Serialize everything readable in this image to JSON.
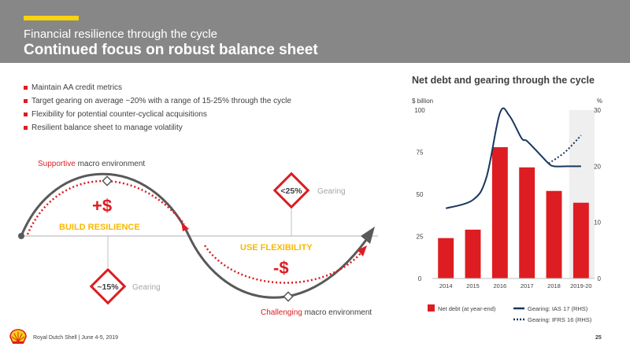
{
  "header": {
    "subtitle": "Financial resilience through the cycle",
    "title": "Continued focus on robust balance sheet",
    "accent_color": "#f8d30f"
  },
  "bullets": [
    "Maintain AA credit metrics",
    "Target gearing on average ~20% with a range of 15-25% through the cycle",
    "Flexibility for potential counter-cyclical acquisitions",
    "Resilient balance sheet to manage volatility"
  ],
  "cycle": {
    "supportive_word": "Supportive",
    "supportive_rest": " macro environment",
    "challenging_word": "Challenging",
    "challenging_rest": " macro environment",
    "build_sign": "+$",
    "build_label": "BUILD RESILIENCE",
    "flex_label": "USE FLEXIBILITY",
    "flex_sign": "-$",
    "upper_marker": "<25%",
    "lower_marker": "~15%",
    "gearing_label_upper": "Gearing",
    "gearing_label_lower": "Gearing",
    "highlight_color": "#dd1d21",
    "accent_color": "#f8d30f"
  },
  "chart_title": "Net debt and gearing through the cycle",
  "chart_data": {
    "type": "bar",
    "categories": [
      "2014",
      "2015",
      "2016",
      "2017",
      "2018",
      "2019-20"
    ],
    "ylabel_left": "$ billion",
    "ylabel_right": "%",
    "ylim_left": [
      0,
      100
    ],
    "ylim_right": [
      0,
      30
    ],
    "yticks_left": [
      0,
      25,
      50,
      75,
      100
    ],
    "yticks_right": [
      0,
      10,
      20,
      30
    ],
    "bars": {
      "name": "Net debt (at year-end)",
      "values": [
        24,
        29,
        78,
        66,
        52,
        45
      ],
      "color": "#dd1d21"
    },
    "lines": [
      {
        "name": "Gearing: IAS 17 (RHS)",
        "style": "solid",
        "color": "#17375e",
        "points": [
          [
            0,
            12.5
          ],
          [
            1,
            14
          ],
          [
            1.5,
            18
          ],
          [
            2,
            29.5
          ],
          [
            2.35,
            29
          ],
          [
            2.8,
            25
          ],
          [
            3,
            24.5
          ],
          [
            3.5,
            22
          ],
          [
            3.8,
            20.5
          ],
          [
            4,
            20
          ],
          [
            4.5,
            20
          ],
          [
            5,
            20
          ]
        ]
      },
      {
        "name": "Gearing: IFRS 16 (RHS)",
        "style": "dotted",
        "color": "#17375e",
        "points": [
          [
            3.8,
            20.5
          ],
          [
            4.4,
            22.5
          ],
          [
            5,
            25.5
          ]
        ]
      }
    ],
    "highlight_category": "2019-20",
    "grid": false,
    "legend_position": "bottom"
  },
  "footer": {
    "text": "Royal Dutch Shell | June 4-5, 2019",
    "page": "25",
    "logo_colors": [
      "#f8d30f",
      "#dd1d21"
    ]
  }
}
